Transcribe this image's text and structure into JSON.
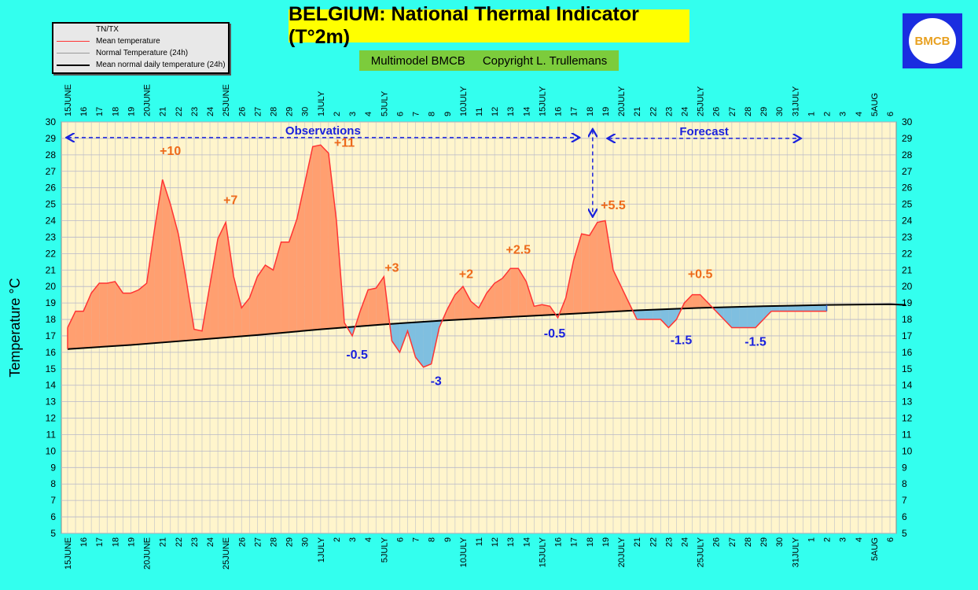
{
  "header": {
    "title": "BELGIUM: National Thermal Indicator (T°2m)",
    "subtitle_left": "Multimodel BMCB",
    "subtitle_right": "Copyright L. Trullemans"
  },
  "legend": {
    "items": [
      {
        "label": "TN/TX",
        "color": "#aaaaaa"
      },
      {
        "label": "Mean temperature",
        "color": "#ff3333"
      },
      {
        "label": "Normal Temperature (24h)",
        "color": "#999999"
      },
      {
        "label": "Mean normal daily temperature (24h)",
        "color": "#000000"
      }
    ]
  },
  "logo": {
    "text": "BMCB"
  },
  "chart_data": {
    "type": "area",
    "ylabel": "Temperature °C",
    "ylim": [
      5,
      30
    ],
    "y_ticks": [
      "5",
      "6",
      "7",
      "8",
      "9",
      "10",
      "11",
      "12",
      "13",
      "14",
      "15",
      "16",
      "17",
      "18",
      "19",
      "20",
      "21",
      "22",
      "23",
      "24",
      "25",
      "26",
      "27",
      "28",
      "29",
      "30"
    ],
    "x_labels": [
      "15JUNE",
      "16",
      "17",
      "18",
      "19",
      "20JUNE",
      "21",
      "22",
      "23",
      "24",
      "25JUNE",
      "26",
      "27",
      "28",
      "29",
      "30",
      "1JULY",
      "2",
      "3",
      "4",
      "5JULY",
      "6",
      "7",
      "8",
      "9",
      "10JULY",
      "11",
      "12",
      "13",
      "14",
      "15JULY",
      "16",
      "17",
      "18",
      "19",
      "20JULY",
      "21",
      "22",
      "23",
      "24",
      "25JULY",
      "26",
      "27",
      "28",
      "29",
      "30",
      "31JULY",
      "1",
      "2",
      "3",
      "4",
      "5AUG",
      "6"
    ],
    "series": [
      {
        "name": "Mean temperature",
        "color": "#ff3333",
        "x": [
          0,
          0.5,
          1,
          1.5,
          2,
          2.5,
          3,
          3.5,
          4,
          4.5,
          5,
          5.5,
          6,
          6.5,
          7,
          7.5,
          8,
          8.5,
          9,
          9.5,
          10,
          10.5,
          11,
          11.5,
          12,
          12.5,
          13,
          13.5,
          14,
          14.5,
          15,
          15.5,
          16,
          16.5,
          17,
          17.5,
          18,
          18.5,
          19,
          19.5,
          20,
          20.5,
          21,
          21.5,
          22,
          22.5,
          23,
          23.5,
          24,
          24.5,
          25,
          25.5,
          26,
          26.5,
          27,
          27.5,
          28,
          28.5,
          29,
          29.5,
          30,
          30.5,
          31,
          31.5,
          32,
          32.5,
          33,
          33.5,
          34,
          34.5,
          35,
          35.5,
          36,
          36.5,
          37,
          37.5,
          38,
          38.5,
          39,
          39.5,
          40,
          40.5,
          41,
          41.5,
          42,
          42.5,
          43,
          43.5,
          44,
          44.5,
          45,
          45.5,
          46,
          46.5,
          47,
          47.5,
          48
        ],
        "values": [
          17.5,
          18.5,
          18.5,
          19.6,
          20.2,
          20.2,
          20.3,
          19.6,
          19.6,
          19.8,
          20.2,
          23.5,
          26.5,
          25,
          23.2,
          20.4,
          17.4,
          17.3,
          20.1,
          22.9,
          23.9,
          20.6,
          18.7,
          19.3,
          20.6,
          21.3,
          21.0,
          22.7,
          22.7,
          24.1,
          26.3,
          28.5,
          28.6,
          28.1,
          24,
          17.8,
          17,
          18.5,
          19.8,
          19.9,
          20.6,
          16.7,
          16,
          17.3,
          15.7,
          15.1,
          15.3,
          17.5,
          18.6,
          19.5,
          20.0,
          19.1,
          18.7,
          19.6,
          20.2,
          20.5,
          21.1,
          21.1,
          20.3,
          18.8,
          18.9,
          18.8,
          18.1,
          19.3,
          21.6,
          23.2,
          23.1,
          23.9,
          24.0,
          21.0,
          20.0,
          19.0,
          18.0,
          18.0,
          18.0,
          18.0,
          17.5,
          18.0,
          19.0,
          19.5,
          19.5,
          19.0,
          18.5,
          18.0,
          17.5,
          17.5,
          17.5,
          17.5,
          18.0,
          18.5,
          18.5,
          18.5,
          18.5,
          18.5,
          18.5,
          18.5,
          18.5
        ]
      },
      {
        "name": "Mean normal daily temperature (24h)",
        "color": "#000000",
        "x": [
          0,
          4,
          8,
          12,
          16,
          20,
          24,
          28,
          32,
          36,
          40,
          44,
          48,
          52,
          53
        ],
        "values": [
          16.2,
          16.45,
          16.75,
          17.05,
          17.4,
          17.7,
          17.95,
          18.15,
          18.35,
          18.55,
          18.7,
          18.8,
          18.88,
          18.92,
          18.88
        ]
      }
    ],
    "anomaly_labels": [
      {
        "text": "+10",
        "x": 6.5,
        "y": 28.0,
        "color": "#ee6a1a"
      },
      {
        "text": "+7",
        "x": 10.3,
        "y": 25.0,
        "color": "#ee6a1a"
      },
      {
        "text": "+11",
        "x": 17.5,
        "y": 28.5,
        "color": "#ee6a1a"
      },
      {
        "text": "-0.5",
        "x": 18.3,
        "y": 15.6,
        "color": "#1a22dd"
      },
      {
        "text": "+3",
        "x": 20.5,
        "y": 20.9,
        "color": "#ee6a1a"
      },
      {
        "text": "-3",
        "x": 23.3,
        "y": 14.0,
        "color": "#1a22dd"
      },
      {
        "text": "+2",
        "x": 25.2,
        "y": 20.5,
        "color": "#ee6a1a"
      },
      {
        "text": "+2.5",
        "x": 28.5,
        "y": 22.0,
        "color": "#ee6a1a"
      },
      {
        "text": "-0.5",
        "x": 30.8,
        "y": 16.9,
        "color": "#1a22dd"
      },
      {
        "text": "+5.5",
        "x": 34.5,
        "y": 24.7,
        "color": "#ee6a1a"
      },
      {
        "text": "-1.5",
        "x": 38.8,
        "y": 16.5,
        "color": "#1a22dd"
      },
      {
        "text": "+0.5",
        "x": 40.0,
        "y": 20.5,
        "color": "#ee6a1a"
      },
      {
        "text": "-1.5",
        "x": 43.5,
        "y": 16.4,
        "color": "#1a22dd"
      }
    ],
    "periods": [
      {
        "label": "Observations",
        "x_start": 0,
        "x_end": 32.3,
        "y": 29.05
      },
      {
        "label": "Forecast",
        "x_start": 34.2,
        "x_end": 46.3,
        "y": 29.0
      }
    ],
    "grid": true
  }
}
